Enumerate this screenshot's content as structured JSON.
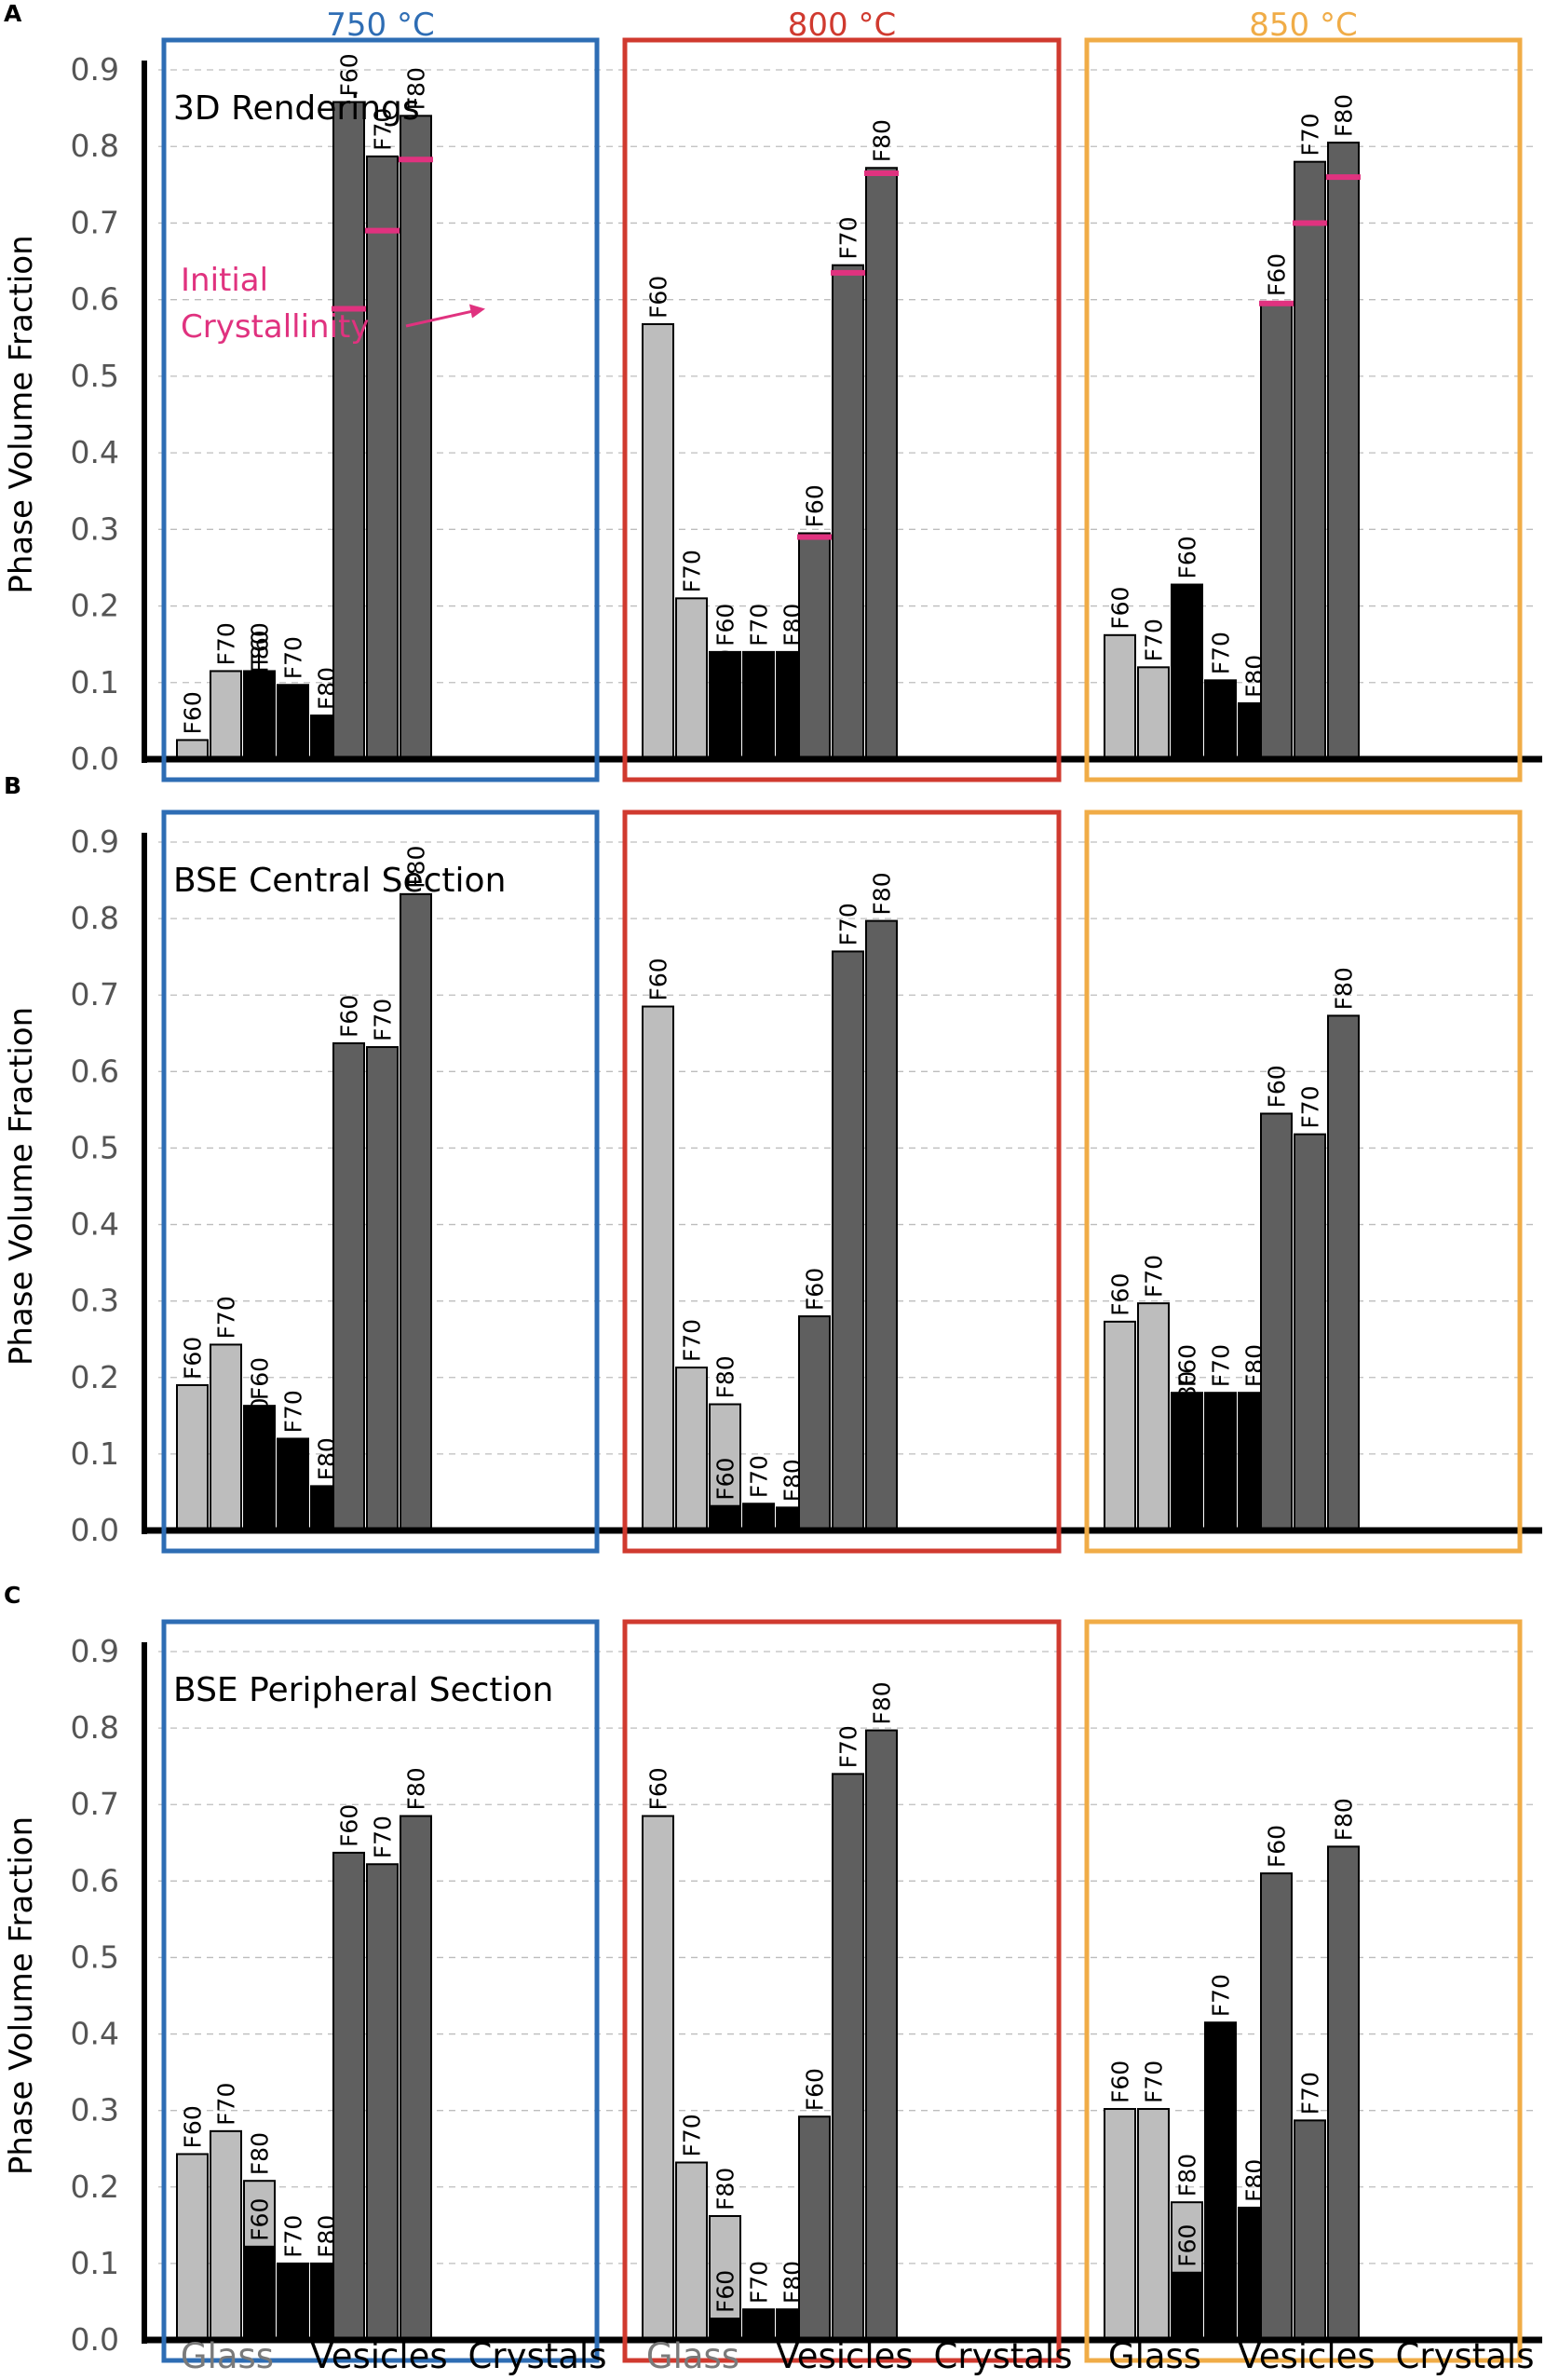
{
  "chart_data": [
    {
      "type": "bar",
      "panel_label": "A",
      "title": "3D Renderings",
      "ylabel": "Phase Volume Fraction",
      "ylim": [
        0,
        0.9
      ],
      "yticks": [
        "0.0",
        "0.1",
        "0.2",
        "0.3",
        "0.4",
        "0.5",
        "0.6",
        "0.7",
        "0.8",
        "0.9"
      ],
      "annotation": {
        "line1": "Initial",
        "line2": "Crystallinity"
      },
      "temperatures": [
        {
          "label": "750 °C",
          "color": "#2e6db4",
          "groups": [
            {
              "name": "Glass",
              "color": "#bdbdbd",
              "bars": [
                {
                  "label": "F60",
                  "value": 0.025
                },
                {
                  "label": "F70",
                  "value": 0.115
                },
                {
                  "label": "F80",
                  "value": 0.105
                }
              ]
            },
            {
              "name": "Vesicles",
              "color": "#000000",
              "bars": [
                {
                  "label": "F60",
                  "value": 0.115
                },
                {
                  "label": "F70",
                  "value": 0.097
                },
                {
                  "label": "F80",
                  "value": 0.057
                }
              ]
            },
            {
              "name": "Crystals",
              "color": "#5f5f5f",
              "bars": [
                {
                  "label": "F60",
                  "value": 0.858,
                  "initial": 0.588
                },
                {
                  "label": "F70",
                  "value": 0.787,
                  "initial": 0.69
                },
                {
                  "label": "F80",
                  "value": 0.84,
                  "initial": 0.783
                }
              ]
            }
          ]
        },
        {
          "label": "800 °C",
          "color": "#d03a2f",
          "groups": [
            {
              "name": "Glass",
              "color": "#bdbdbd",
              "bars": [
                {
                  "label": "F60",
                  "value": 0.568
                },
                {
                  "label": "F70",
                  "value": 0.21
                },
                {
                  "label": "F80",
                  "value": 0.08
                }
              ]
            },
            {
              "name": "Vesicles",
              "color": "#000000",
              "bars": [
                {
                  "label": "F60",
                  "value": 0.14
                },
                {
                  "label": "F70",
                  "value": 0.14
                },
                {
                  "label": "F80",
                  "value": 0.14
                }
              ]
            },
            {
              "name": "Crystals",
              "color": "#5f5f5f",
              "bars": [
                {
                  "label": "F60",
                  "value": 0.295,
                  "initial": 0.29
                },
                {
                  "label": "F70",
                  "value": 0.645,
                  "initial": 0.635
                },
                {
                  "label": "F80",
                  "value": 0.772,
                  "initial": 0.765
                }
              ]
            }
          ]
        },
        {
          "label": "850 °C",
          "color": "#f0ac47",
          "groups": [
            {
              "name": "Glass",
              "color": "#bdbdbd",
              "bars": [
                {
                  "label": "F60",
                  "value": 0.162
                },
                {
                  "label": "F70",
                  "value": 0.12
                },
                {
                  "label": "F80",
                  "value": 0.12
                }
              ]
            },
            {
              "name": "Vesicles",
              "color": "#000000",
              "bars": [
                {
                  "label": "F60",
                  "value": 0.228
                },
                {
                  "label": "F70",
                  "value": 0.103
                },
                {
                  "label": "F80",
                  "value": 0.073
                }
              ]
            },
            {
              "name": "Crystals",
              "color": "#5f5f5f",
              "bars": [
                {
                  "label": "F60",
                  "value": 0.597,
                  "initial": 0.595
                },
                {
                  "label": "F70",
                  "value": 0.78,
                  "initial": 0.7
                },
                {
                  "label": "F80",
                  "value": 0.805,
                  "initial": 0.76
                }
              ]
            }
          ]
        }
      ]
    },
    {
      "type": "bar",
      "panel_label": "B",
      "title": "BSE Central Section",
      "ylabel": "Phase Volume Fraction",
      "ylim": [
        0,
        0.9
      ],
      "yticks": [
        "0.0",
        "0.1",
        "0.2",
        "0.3",
        "0.4",
        "0.5",
        "0.6",
        "0.7",
        "0.8",
        "0.9"
      ],
      "temperatures": [
        {
          "label": "750 °C",
          "color": "#2e6db4",
          "groups": [
            {
              "name": "Glass",
              "color": "#bdbdbd",
              "bars": [
                {
                  "label": "F60",
                  "value": 0.19
                },
                {
                  "label": "F70",
                  "value": 0.243
                },
                {
                  "label": "F80",
                  "value": 0.11
                }
              ]
            },
            {
              "name": "Vesicles",
              "color": "#000000",
              "bars": [
                {
                  "label": "F60",
                  "value": 0.163
                },
                {
                  "label": "F70",
                  "value": 0.12
                },
                {
                  "label": "F80",
                  "value": 0.058
                }
              ]
            },
            {
              "name": "Crystals",
              "color": "#5f5f5f",
              "bars": [
                {
                  "label": "F60",
                  "value": 0.637
                },
                {
                  "label": "F70",
                  "value": 0.632
                },
                {
                  "label": "F80",
                  "value": 0.832
                }
              ]
            }
          ]
        },
        {
          "label": "800 °C",
          "color": "#d03a2f",
          "groups": [
            {
              "name": "Glass",
              "color": "#bdbdbd",
              "bars": [
                {
                  "label": "F60",
                  "value": 0.685
                },
                {
                  "label": "F70",
                  "value": 0.213
                },
                {
                  "label": "F80",
                  "value": 0.165
                }
              ]
            },
            {
              "name": "Vesicles",
              "color": "#000000",
              "bars": [
                {
                  "label": "F60",
                  "value": 0.032
                },
                {
                  "label": "F70",
                  "value": 0.035
                },
                {
                  "label": "F80",
                  "value": 0.03
                }
              ]
            },
            {
              "name": "Crystals",
              "color": "#5f5f5f",
              "bars": [
                {
                  "label": "F60",
                  "value": 0.28
                },
                {
                  "label": "F70",
                  "value": 0.757
                },
                {
                  "label": "F80",
                  "value": 0.797
                }
              ]
            }
          ]
        },
        {
          "label": "850 °C",
          "color": "#f0ac47",
          "groups": [
            {
              "name": "Glass",
              "color": "#bdbdbd",
              "bars": [
                {
                  "label": "F60",
                  "value": 0.273
                },
                {
                  "label": "F70",
                  "value": 0.297
                },
                {
                  "label": "F80",
                  "value": 0.145
                }
              ]
            },
            {
              "name": "Vesicles",
              "color": "#000000",
              "bars": [
                {
                  "label": "F60",
                  "value": 0.18
                },
                {
                  "label": "F70",
                  "value": 0.18
                },
                {
                  "label": "F80",
                  "value": 0.18
                }
              ]
            },
            {
              "name": "Crystals",
              "color": "#5f5f5f",
              "bars": [
                {
                  "label": "F60",
                  "value": 0.545
                },
                {
                  "label": "F70",
                  "value": 0.518
                },
                {
                  "label": "F80",
                  "value": 0.673
                }
              ]
            }
          ]
        }
      ]
    },
    {
      "type": "bar",
      "panel_label": "C",
      "title": "BSE Peripheral Section",
      "ylabel": "Phase Volume Fraction",
      "ylim": [
        0,
        0.9
      ],
      "yticks": [
        "0.0",
        "0.1",
        "0.2",
        "0.3",
        "0.4",
        "0.5",
        "0.6",
        "0.7",
        "0.8",
        "0.9"
      ],
      "temperatures": [
        {
          "label": "750 °C",
          "color": "#2e6db4",
          "groups": [
            {
              "name": "Glass",
              "color": "#bdbdbd",
              "bars": [
                {
                  "label": "F60",
                  "value": 0.243
                },
                {
                  "label": "F70",
                  "value": 0.273
                },
                {
                  "label": "F80",
                  "value": 0.208
                }
              ]
            },
            {
              "name": "Vesicles",
              "color": "#000000",
              "bars": [
                {
                  "label": "F60",
                  "value": 0.122
                },
                {
                  "label": "F70",
                  "value": 0.1
                },
                {
                  "label": "F80",
                  "value": 0.1
                }
              ]
            },
            {
              "name": "Crystals",
              "color": "#5f5f5f",
              "bars": [
                {
                  "label": "F60",
                  "value": 0.637
                },
                {
                  "label": "F70",
                  "value": 0.622
                },
                {
                  "label": "F80",
                  "value": 0.685
                }
              ]
            }
          ]
        },
        {
          "label": "800 °C",
          "color": "#d03a2f",
          "groups": [
            {
              "name": "Glass",
              "color": "#bdbdbd",
              "bars": [
                {
                  "label": "F60",
                  "value": 0.685
                },
                {
                  "label": "F70",
                  "value": 0.232
                },
                {
                  "label": "F80",
                  "value": 0.162
                }
              ]
            },
            {
              "name": "Vesicles",
              "color": "#000000",
              "bars": [
                {
                  "label": "F60",
                  "value": 0.028
                },
                {
                  "label": "F70",
                  "value": 0.04
                },
                {
                  "label": "F80",
                  "value": 0.04
                }
              ]
            },
            {
              "name": "Crystals",
              "color": "#5f5f5f",
              "bars": [
                {
                  "label": "F60",
                  "value": 0.292
                },
                {
                  "label": "F70",
                  "value": 0.74
                },
                {
                  "label": "F80",
                  "value": 0.797
                }
              ]
            }
          ]
        },
        {
          "label": "850 °C",
          "color": "#f0ac47",
          "groups": [
            {
              "name": "Glass",
              "color": "#bdbdbd",
              "bars": [
                {
                  "label": "F60",
                  "value": 0.302
                },
                {
                  "label": "F70",
                  "value": 0.302
                },
                {
                  "label": "F80",
                  "value": 0.18
                }
              ]
            },
            {
              "name": "Vesicles",
              "color": "#000000",
              "bars": [
                {
                  "label": "F60",
                  "value": 0.088
                },
                {
                  "label": "F70",
                  "value": 0.415
                },
                {
                  "label": "F80",
                  "value": 0.173
                }
              ]
            },
            {
              "name": "Crystals",
              "color": "#5f5f5f",
              "bars": [
                {
                  "label": "F60",
                  "value": 0.61
                },
                {
                  "label": "F70",
                  "value": 0.287
                },
                {
                  "label": "F80",
                  "value": 0.645
                }
              ]
            }
          ]
        }
      ]
    }
  ],
  "x_axis": {
    "categories": [
      "Glass",
      "Vesicles",
      "Crystals",
      "Glass",
      "Vesicles",
      "Crystals",
      "Glass",
      "Vesicles",
      "Crystals"
    ],
    "category_colors": [
      "#7a7a7a",
      "#000000",
      "#000000",
      "#7a7a7a",
      "#000000",
      "#000000",
      "#000000",
      "#000000",
      "#000000"
    ]
  },
  "colors": {
    "glass": "#bdbdbd",
    "vesicles": "#000000",
    "crystals": "#5f5f5f",
    "initial_marker": "#e0327f",
    "grid": "#bdbdbd"
  }
}
